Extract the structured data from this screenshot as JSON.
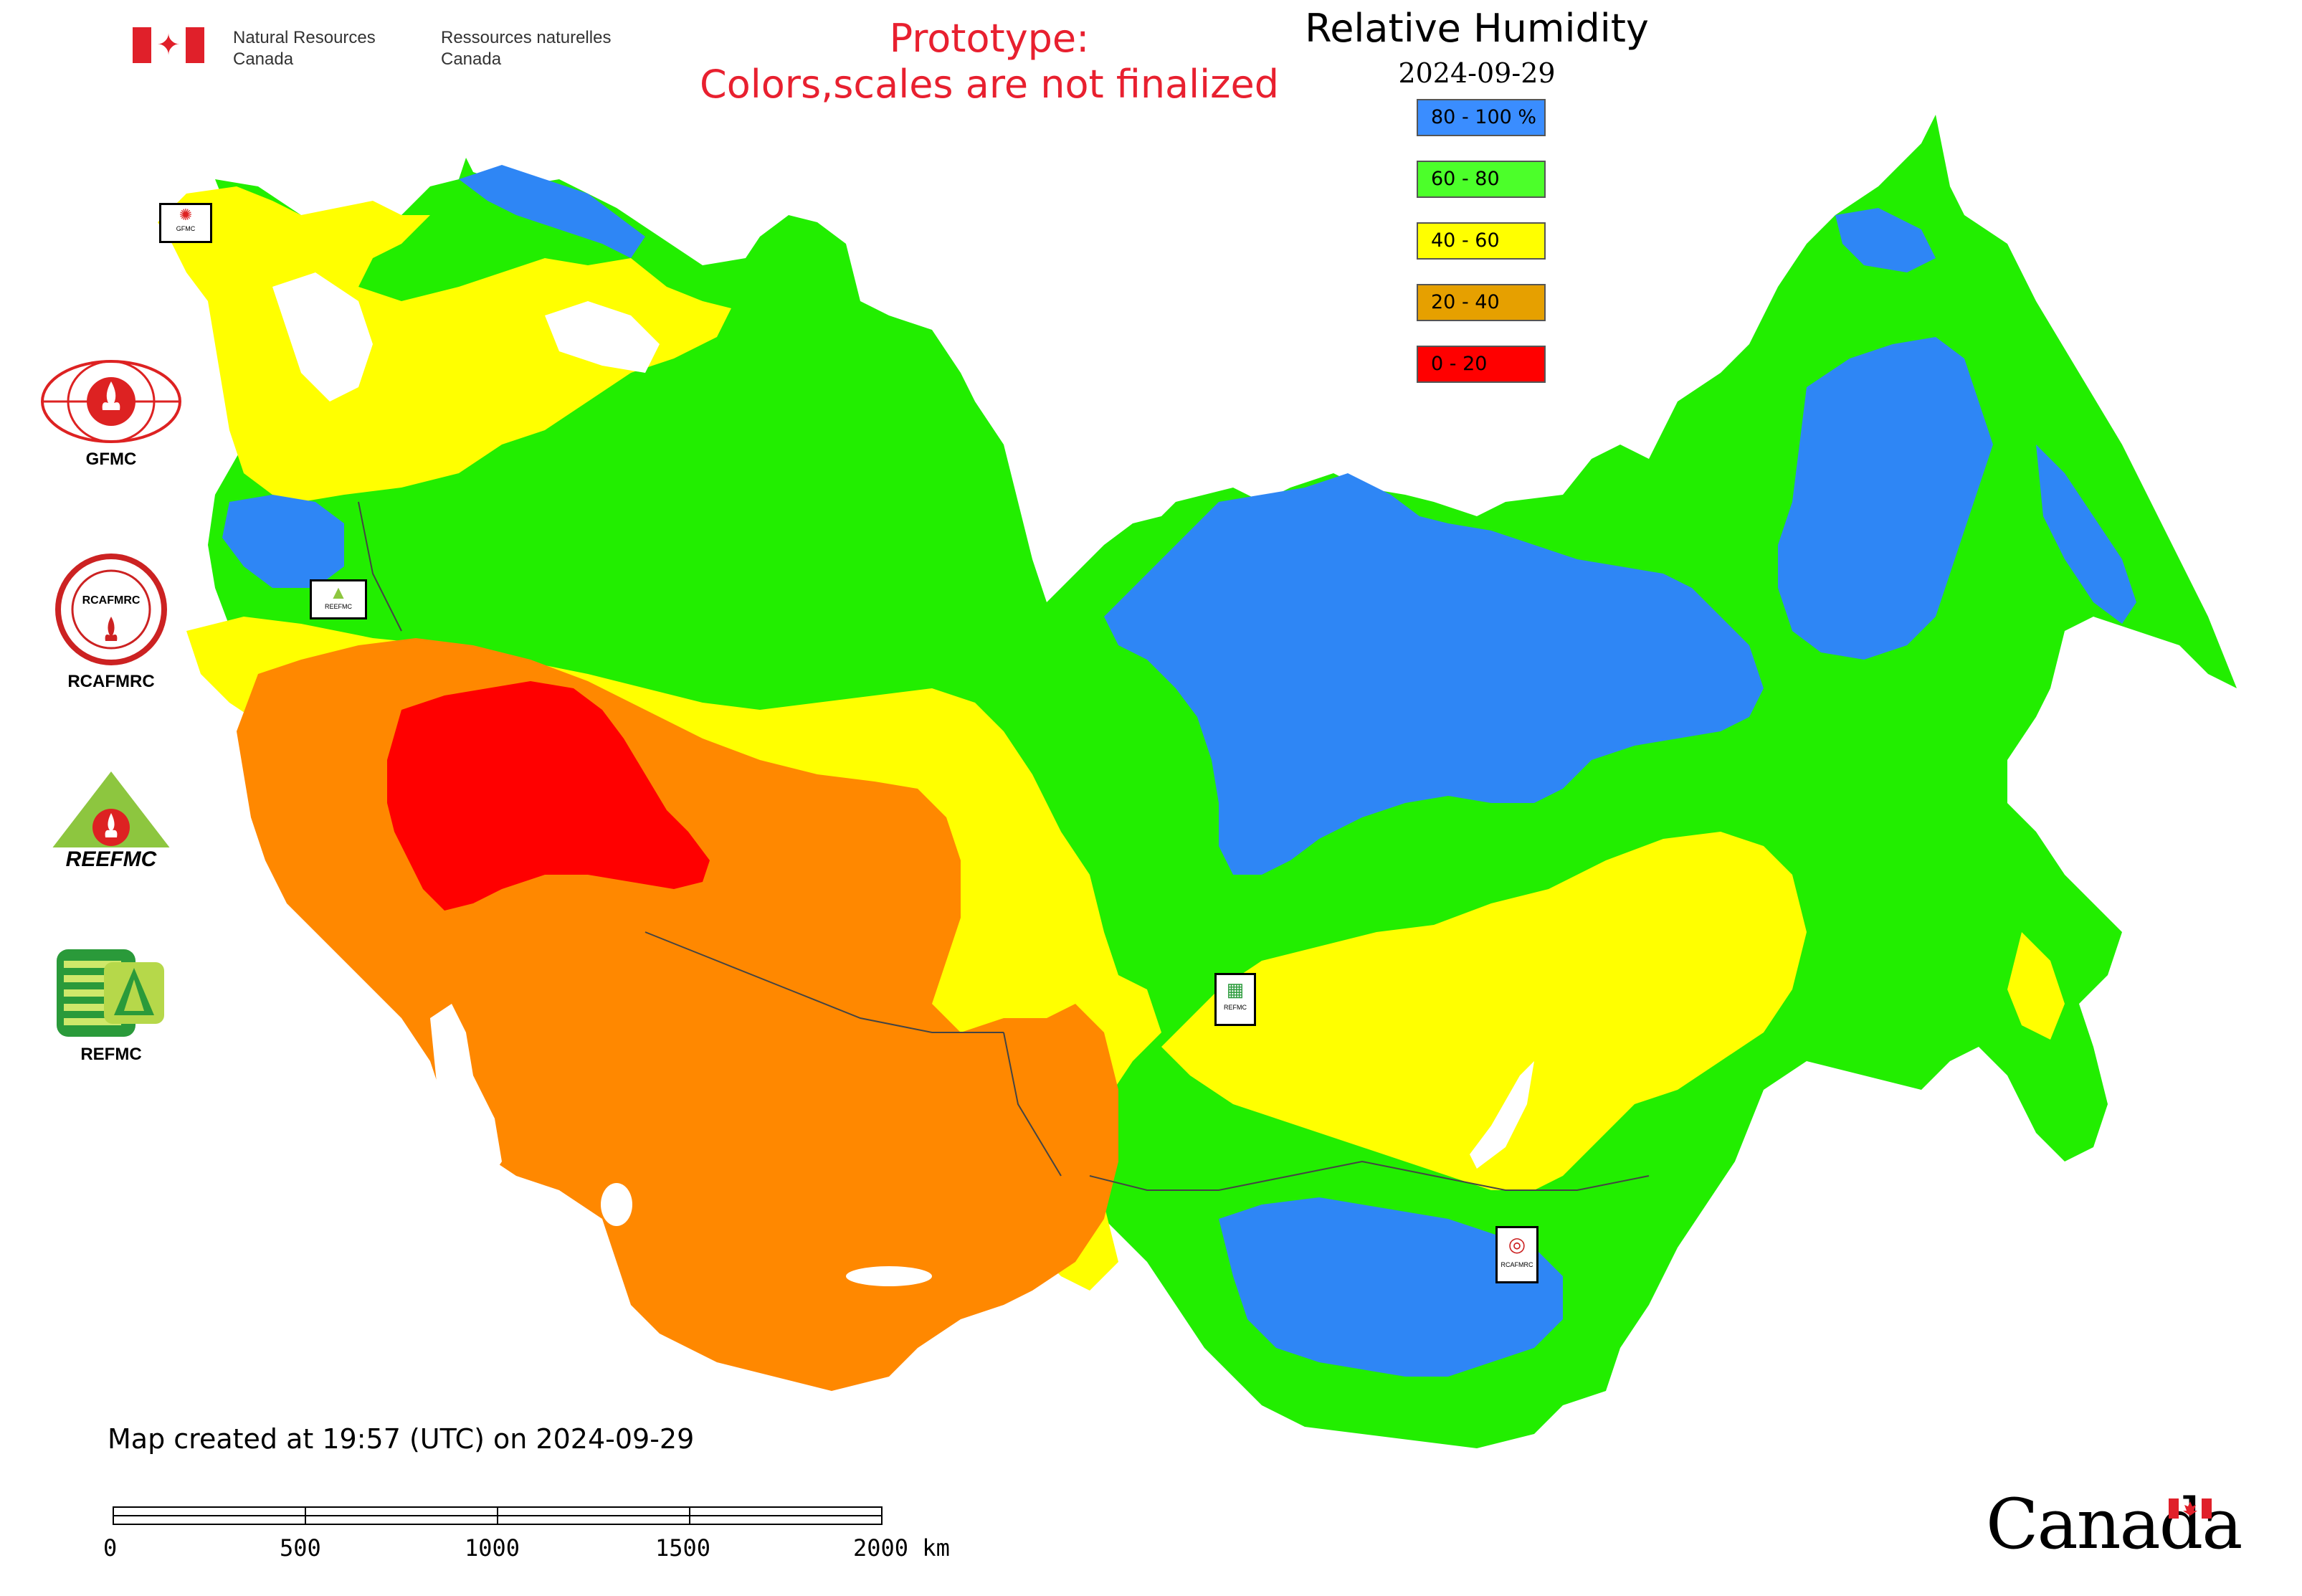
{
  "header": {
    "dept_en": [
      "Natural Resources",
      "Canada"
    ],
    "dept_fr": [
      "Ressources naturelles",
      "Canada"
    ]
  },
  "prototype_notice": [
    "Prototype:",
    "Colors,scales are not finalized"
  ],
  "map": {
    "title": "Relative Humidity",
    "date": "2024-09-29",
    "legend": [
      {
        "label": "80 - 100 %",
        "color": "#3a8dff"
      },
      {
        "label": "60 - 80",
        "color": "#4cff2a"
      },
      {
        "label": "40 - 60",
        "color": "#ffff00"
      },
      {
        "label": "20 - 40",
        "color": "#e6a000"
      },
      {
        "label": "0 - 20",
        "color": "#ff0000"
      }
    ],
    "colors": {
      "blue": "#2e86f5",
      "green": "#22ee00",
      "yellow": "#ffff00",
      "orange": "#ff8800",
      "red": "#ff0000",
      "water": "#ffffff"
    }
  },
  "logos": [
    {
      "label": "GFMC",
      "icon": "gfmc-logo-icon"
    },
    {
      "label": "RCAFMRC",
      "icon": "rcafmrc-logo-icon"
    },
    {
      "label": "",
      "wordmark": "REEFMC",
      "icon": "reefmc-logo-icon"
    },
    {
      "label": "REFMC",
      "icon": "refmc-logo-icon"
    }
  ],
  "map_markers": [
    {
      "label": "GFMC",
      "icon": "gfmc-marker-icon"
    },
    {
      "label": "REEFMC",
      "icon": "reefmc-marker-icon"
    },
    {
      "label": "REFMC",
      "icon": "refmc-marker-icon"
    },
    {
      "label": "RCAFMRC",
      "icon": "rcafmrc-marker-icon"
    }
  ],
  "footer": {
    "created": "Map created at 19:57 (UTC) on 2024-09-29",
    "scale_ticks": [
      "0",
      "500",
      "1000",
      "1500",
      "2000 km"
    ],
    "wordmark": "Canada"
  }
}
